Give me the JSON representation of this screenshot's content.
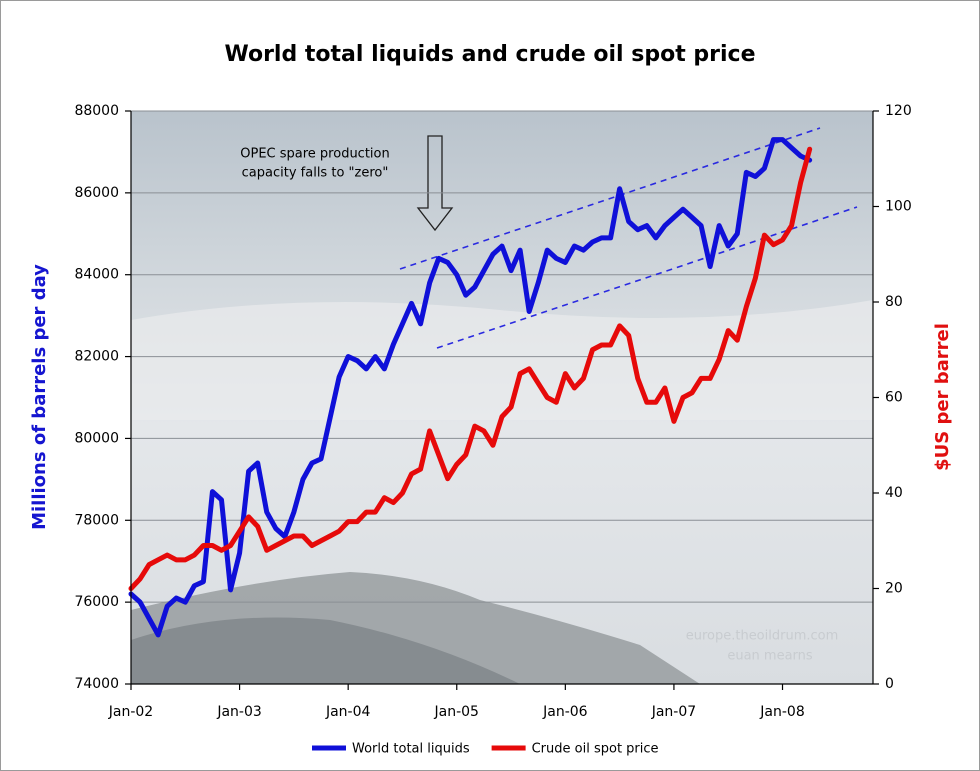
{
  "chart_data": {
    "type": "line",
    "title": "World total liquids and crude oil spot price",
    "ylabel": "Millions of barrels per day",
    "y2label": "$US per barrel",
    "annotation": [
      "OPEC spare production",
      "capacity falls to \"zero\""
    ],
    "watermark": [
      "europe.theoildrum.com",
      "euan mearns"
    ],
    "x": [
      "2002-01",
      "2002-02",
      "2002-03",
      "2002-04",
      "2002-05",
      "2002-06",
      "2002-07",
      "2002-08",
      "2002-09",
      "2002-10",
      "2002-11",
      "2002-12",
      "2003-01",
      "2003-02",
      "2003-03",
      "2003-04",
      "2003-05",
      "2003-06",
      "2003-07",
      "2003-08",
      "2003-09",
      "2003-10",
      "2003-11",
      "2003-12",
      "2004-01",
      "2004-02",
      "2004-03",
      "2004-04",
      "2004-05",
      "2004-06",
      "2004-07",
      "2004-08",
      "2004-09",
      "2004-10",
      "2004-11",
      "2004-12",
      "2005-01",
      "2005-02",
      "2005-03",
      "2005-04",
      "2005-05",
      "2005-06",
      "2005-07",
      "2005-08",
      "2005-09",
      "2005-10",
      "2005-11",
      "2005-12",
      "2006-01",
      "2006-02",
      "2006-03",
      "2006-04",
      "2006-05",
      "2006-06",
      "2006-07",
      "2006-08",
      "2006-09",
      "2006-10",
      "2006-11",
      "2006-12",
      "2007-01",
      "2007-02",
      "2007-03",
      "2007-04",
      "2007-05",
      "2007-06",
      "2007-07",
      "2007-08",
      "2007-09",
      "2007-10",
      "2007-11",
      "2007-12",
      "2008-01",
      "2008-02",
      "2008-03",
      "2008-04"
    ],
    "xlim": [
      "2002-01",
      "2008-11"
    ],
    "xticks": [
      {
        "value": "2002-01",
        "label": "Jan-02"
      },
      {
        "value": "2003-01",
        "label": "Jan-03"
      },
      {
        "value": "2004-01",
        "label": "Jan-04"
      },
      {
        "value": "2005-01",
        "label": "Jan-05"
      },
      {
        "value": "2006-01",
        "label": "Jan-06"
      },
      {
        "value": "2007-01",
        "label": "Jan-07"
      },
      {
        "value": "2008-01",
        "label": "Jan-08"
      }
    ],
    "ylim": [
      74000,
      88000
    ],
    "yticks": [
      74000,
      76000,
      78000,
      80000,
      82000,
      84000,
      86000,
      88000
    ],
    "y2lim": [
      0,
      120
    ],
    "y2ticks": [
      0,
      20,
      40,
      60,
      80,
      100,
      120
    ],
    "grid": true,
    "legend": "bottom",
    "series": [
      {
        "name": "World total liquids",
        "color": "#0f10d8",
        "axis": "y",
        "values": [
          76200,
          76000,
          75600,
          75200,
          75900,
          76100,
          76000,
          76400,
          76500,
          78700,
          78500,
          76300,
          77200,
          79200,
          79400,
          78200,
          77800,
          77600,
          78200,
          79000,
          79400,
          79500,
          80500,
          81500,
          82000,
          81900,
          81700,
          82000,
          81700,
          82300,
          82800,
          83300,
          82800,
          83800,
          84400,
          84300,
          84000,
          83500,
          83700,
          84100,
          84500,
          84700,
          84100,
          84600,
          83100,
          83800,
          84600,
          84400,
          84300,
          84700,
          84600,
          84800,
          84900,
          84900,
          86100,
          85300,
          85100,
          85200,
          84900,
          85200,
          85400,
          85600,
          85400,
          85200,
          84200,
          85200,
          84700,
          85000,
          86500,
          86400,
          86600,
          87300,
          87300,
          87100,
          86900,
          86800
        ]
      },
      {
        "name": "Crude oil spot price",
        "color": "#e60a0a",
        "axis": "y2",
        "values": [
          20,
          22,
          25,
          26,
          27,
          26,
          26,
          27,
          29,
          29,
          28,
          29,
          32,
          35,
          33,
          28,
          29,
          30,
          31,
          31,
          29,
          30,
          31,
          32,
          34,
          34,
          36,
          36,
          39,
          38,
          40,
          44,
          45,
          53,
          48,
          43,
          46,
          48,
          54,
          53,
          50,
          56,
          58,
          65,
          66,
          63,
          60,
          59,
          65,
          62,
          64,
          70,
          71,
          71,
          75,
          73,
          64,
          59,
          59,
          62,
          55,
          60,
          61,
          64,
          64,
          68,
          74,
          72,
          79,
          85,
          94,
          92,
          93,
          96,
          105,
          112
        ]
      }
    ]
  }
}
